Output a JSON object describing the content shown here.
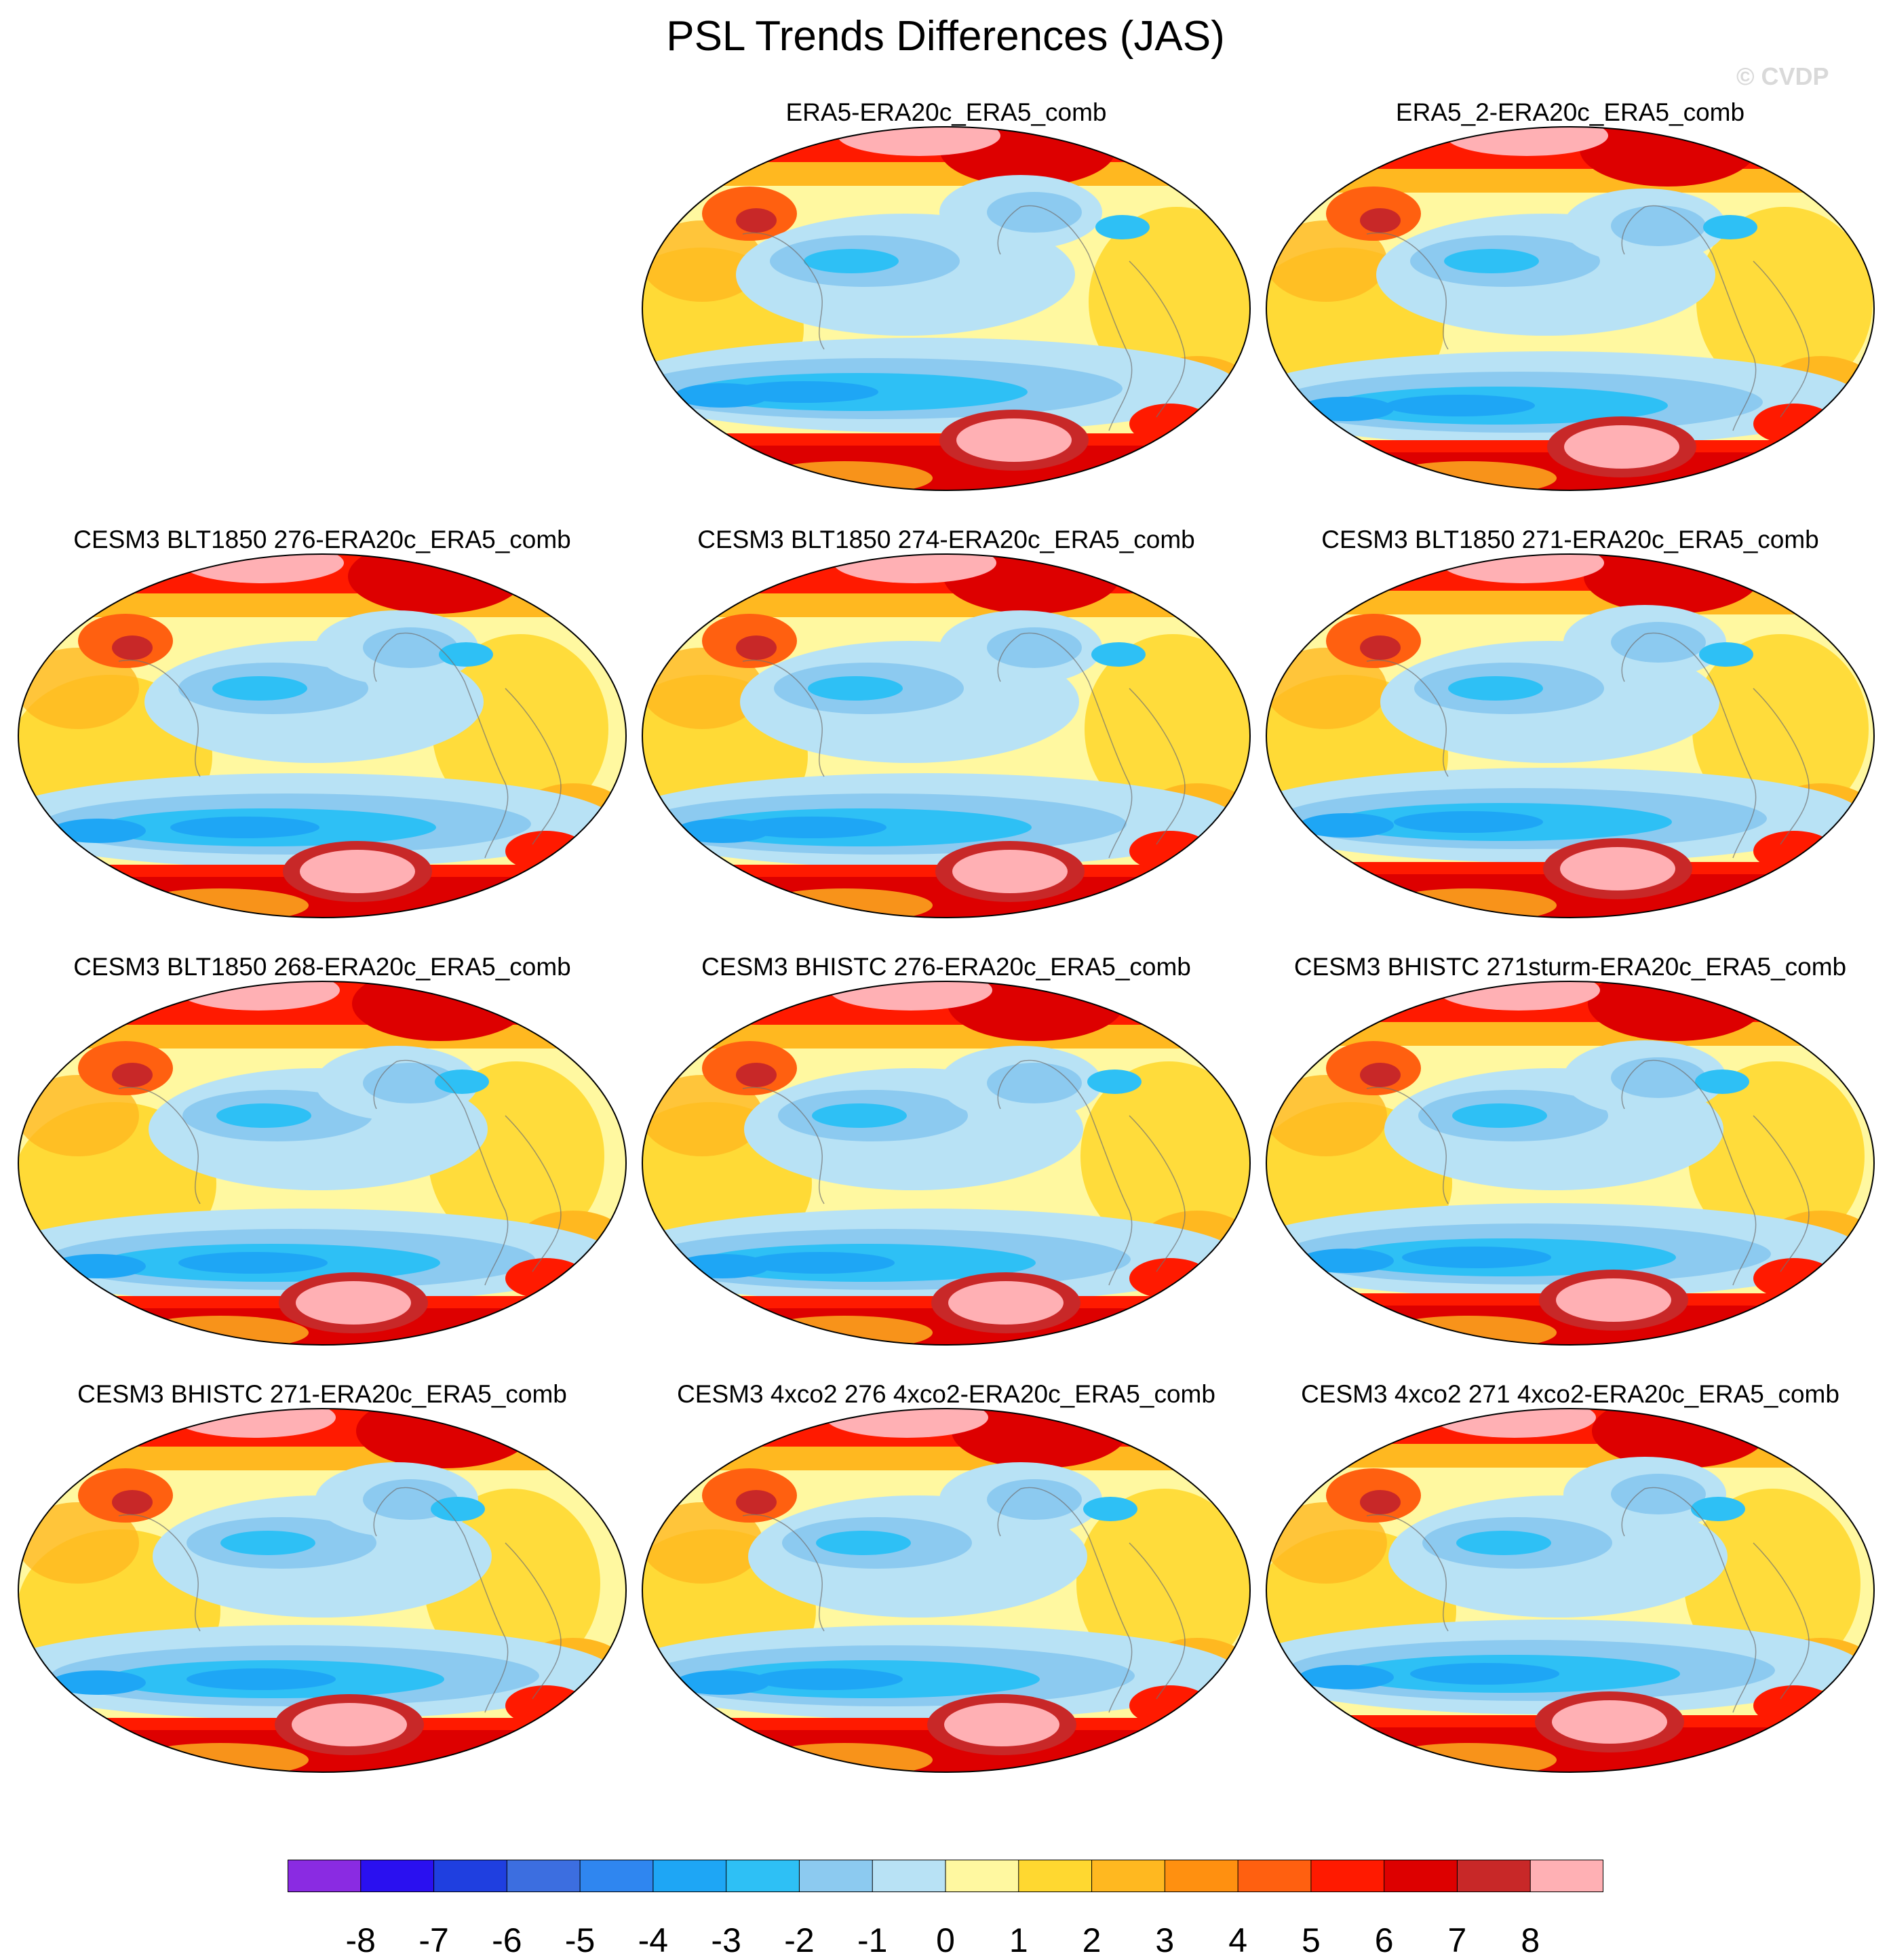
{
  "title": "PSL Trends Differences (JAS)",
  "watermark": "© CVDP",
  "panels": [
    {
      "title": "ERA5-ERA20c_ERA5_comb",
      "pattern": 0
    },
    {
      "title": "ERA5_2-ERA20c_ERA5_comb",
      "pattern": 1
    },
    {
      "title": "CESM3 BLT1850 276-ERA20c_ERA5_comb",
      "pattern": 2
    },
    {
      "title": "CESM3 BLT1850 274-ERA20c_ERA5_comb",
      "pattern": 3
    },
    {
      "title": "CESM3 BLT1850 271-ERA20c_ERA5_comb",
      "pattern": 4
    },
    {
      "title": "CESM3 BLT1850 268-ERA20c_ERA5_comb",
      "pattern": 5
    },
    {
      "title": "CESM3 BHISTC 276-ERA20c_ERA5_comb",
      "pattern": 6
    },
    {
      "title": "CESM3 BHISTC 271sturm-ERA20c_ERA5_comb",
      "pattern": 7
    },
    {
      "title": "CESM3 BHISTC 271-ERA20c_ERA5_comb",
      "pattern": 8
    },
    {
      "title": "CESM3 4xco2 276 4xco2-ERA20c_ERA5_comb",
      "pattern": 9
    },
    {
      "title": "CESM3 4xco2 271 4xco2-ERA20c_ERA5_comb",
      "pattern": 10
    }
  ],
  "colorbar": {
    "labels": [
      "-8",
      "-7",
      "-6",
      "-5",
      "-4",
      "-3",
      "-2",
      "-1",
      "0",
      "1",
      "2",
      "3",
      "4",
      "5",
      "6",
      "7",
      "8"
    ],
    "colors": [
      "#8a2be2",
      "#2a10f0",
      "#1f3fe0",
      "#3c6ee0",
      "#2f86f0",
      "#1ea6f5",
      "#2ec0f5",
      "#8ccaf0",
      "#b8e2f5",
      "#fff8a0",
      "#ffd830",
      "#ffb820",
      "#ff9010",
      "#ff6010",
      "#ff1a00",
      "#dd0000",
      "#c82828",
      "#ffb0b4"
    ]
  }
}
